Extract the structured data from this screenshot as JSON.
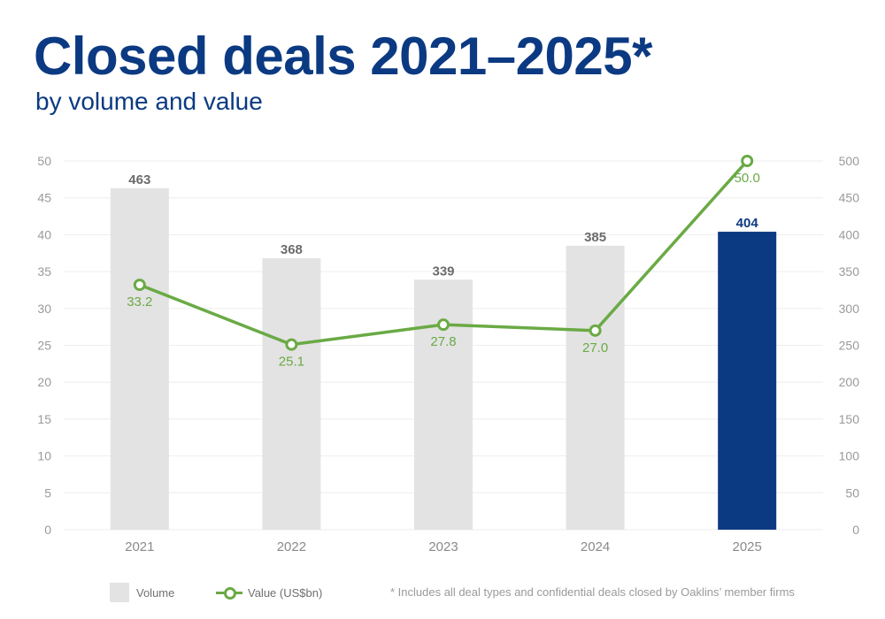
{
  "header": {
    "title": "Closed deals 2021–2025*",
    "subtitle": "by volume and value"
  },
  "legend": {
    "volume_label": "Volume",
    "value_label": "Value (US$bn)"
  },
  "footnote": "* Includes all deal types and confidential deals closed by Oaklins’ member firms",
  "colors": {
    "title": "#0b3a82",
    "bar": "#e3e3e3",
    "bar_highlight": "#0b3a82",
    "line": "#6aaa45",
    "grid": "#eeeeee"
  },
  "chart_data": {
    "type": "bar",
    "title": "Closed deals 2021–2025*",
    "subtitle": "by volume and value",
    "categories": [
      "2021",
      "2022",
      "2023",
      "2024",
      "2025"
    ],
    "series": [
      {
        "name": "Volume",
        "type": "bar",
        "axis": "right",
        "values": [
          463,
          368,
          339,
          385,
          404
        ],
        "labels": [
          "463",
          "368",
          "339",
          "385",
          "404"
        ],
        "highlight_index": 4
      },
      {
        "name": "Value (US$bn)",
        "type": "line",
        "axis": "left",
        "values": [
          33.2,
          25.1,
          27.8,
          27.0,
          50.0
        ],
        "labels": [
          "33.2",
          "25.1",
          "27.8",
          "27.0",
          "50.0"
        ]
      }
    ],
    "y_left": {
      "range": [
        0,
        50
      ],
      "ticks": [
        "0",
        "5",
        "10",
        "15",
        "20",
        "25",
        "30",
        "35",
        "40",
        "45",
        "50"
      ]
    },
    "y_right": {
      "range": [
        0,
        500
      ],
      "ticks": [
        "0",
        "50",
        "100",
        "150",
        "200",
        "250",
        "300",
        "350",
        "400",
        "450",
        "500"
      ]
    },
    "xlabel": "",
    "ylabel": "",
    "grid": true,
    "legend_position": "bottom-left"
  }
}
